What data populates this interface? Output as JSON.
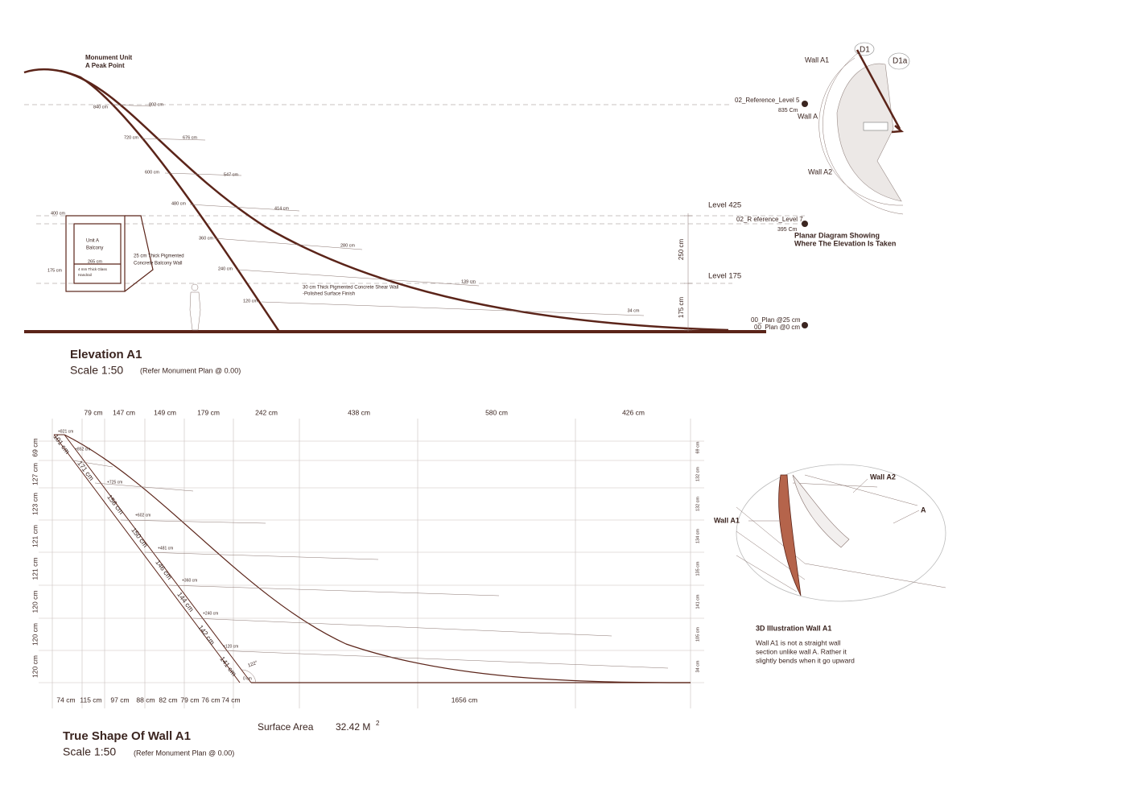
{
  "elevation": {
    "title": "Elevation A1",
    "scale": "Scale 1:50",
    "reference": "(Refer Monument Plan @ 0.00)",
    "peak_label": [
      "Monument Unit",
      "A Peak Point"
    ],
    "dimensions": [
      "840 cm",
      "802 cm",
      "720 cm",
      "676 cm",
      "600 cm",
      "547 cm",
      "480 cm",
      "414 cm",
      "400 cm",
      "360 cm",
      "280 cm",
      "240 cm",
      "139 cm",
      "120 cm",
      "34 cm"
    ],
    "balcony": {
      "unit": [
        "Unit A",
        "Balcony"
      ],
      "width": "265 cm",
      "height": "175 cm",
      "handrail": [
        "4 mm Thick Glass",
        "Handrail"
      ],
      "wall": [
        "25 cm Thick Pigmented",
        "Concrete Balcony Wall"
      ]
    },
    "shear_wall": [
      "30 cm Thick Pigmented Concrete Shear Wall",
      "-Polished Surface Finish"
    ],
    "levels": {
      "ref5": "02_Reference_Level 5",
      "ref5_height": "835 Cm",
      "ref7": "02_R eference_Level 7",
      "ref7_height": "395 Cm",
      "level425": "Level 425",
      "level175": "Level 175",
      "plan25": "00_Plan @25 cm",
      "plan0": "00_Plan @0 cm"
    },
    "vertical_dims": [
      "250 cm",
      "175 cm"
    ]
  },
  "planar_diagram": {
    "labels": [
      "D1",
      "D1a",
      "Wall A1",
      "Wall A",
      "Wall A2"
    ],
    "caption": [
      "Planar Diagram Showing",
      "Where The Elevation Is Taken"
    ]
  },
  "true_shape": {
    "title": "True Shape Of Wall A1",
    "scale": "Scale 1:50",
    "reference": "(Refer Monument Plan @ 0.00)",
    "surface_area_label": "Surface Area",
    "surface_area_value": "32.42 M",
    "surface_area_unit": "2",
    "top_dims": [
      "79 cm",
      "147 cm",
      "149 cm",
      "179 cm",
      "242 cm",
      "438 cm",
      "580 cm",
      "426 cm"
    ],
    "left_dims": [
      "69 cm",
      "127 cm",
      "123 cm",
      "121 cm",
      "121 cm",
      "120 cm",
      "120 cm",
      "120 cm"
    ],
    "bottom_dims": [
      "74 cm",
      "115 cm",
      "97 cm",
      "88 cm",
      "82 cm",
      "79 cm",
      "76 cm",
      "74 cm",
      "1656 cm"
    ],
    "right_dims": [
      "69 cm",
      "132 cm",
      "132 cm",
      "134 cm",
      "135 cm",
      "141 cm",
      "105 cm",
      "34 cm"
    ],
    "edge_dims": [
      "101 cm",
      "171 cm",
      "156 cm",
      "150 cm",
      "146 cm",
      "144 cm",
      "142 cm",
      "141 cm"
    ],
    "heights": [
      "+821 cm",
      "+852 cm",
      "+725 cm",
      "+602 cm",
      "+481 cm",
      "+360 cm",
      "+240 cm",
      "+120 cm",
      "0 cm"
    ],
    "angle": "122°"
  },
  "illustration": {
    "labels": [
      "Wall A1",
      "Wall A2",
      "A"
    ],
    "title": "3D Illustration Wall A1",
    "text": [
      "Wall A1 is not a straight wall",
      "section unlike wall A. Rather it",
      "slightly bends when it go upward"
    ]
  }
}
